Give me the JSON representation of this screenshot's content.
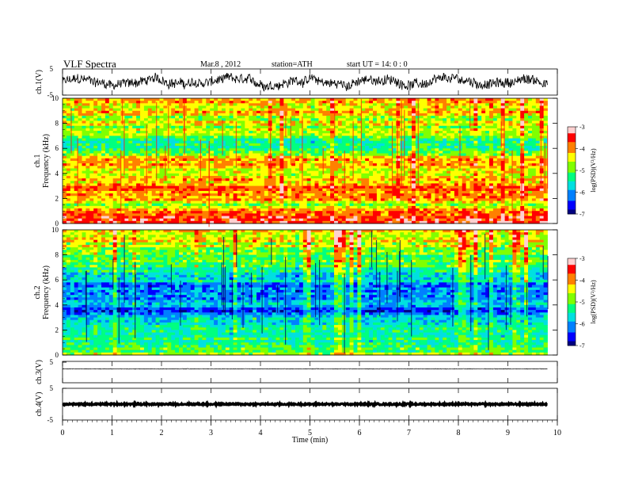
{
  "header": {
    "title": "VLF  Spectra",
    "date": "Mar.8  , 2012",
    "station": "station=ATH",
    "start": "start  UT  =   14: 0  : 0"
  },
  "colors": {
    "colormap": [
      "#000080",
      "#0000ff",
      "#0080ff",
      "#00e0e0",
      "#00ff80",
      "#80ff00",
      "#ffff00",
      "#ff8000",
      "#ff0000",
      "#ffd0d0"
    ]
  },
  "chart_data": [
    {
      "type": "line",
      "channel": "ch.1(V)",
      "ylabel": "ch.1(V)",
      "yticks": [
        "5",
        "-5"
      ],
      "ylim": [
        -5,
        5
      ],
      "xlim": [
        0,
        10
      ],
      "data_end": 9.8,
      "description_level": "noisy trace around 0 V, amplitude ~ ±4 V"
    },
    {
      "type": "heatmap",
      "channel": "ch.1",
      "ylabel": "ch.1\nFrequency  (kHz)",
      "ylabel_lines": [
        "ch.1",
        "Frequency  (kHz)"
      ],
      "yticks": [
        "0",
        "2",
        "4",
        "6",
        "8",
        "10"
      ],
      "ylim": [
        0,
        10
      ],
      "xlim": [
        0,
        10
      ],
      "data_end": 9.8,
      "colorbar": {
        "label": "log(PSD)(V²/Hz)",
        "ticks": [
          "-3",
          "-4",
          "-5",
          "-6",
          "-7"
        ],
        "range": [
          -7,
          -3
        ]
      },
      "band_levels_kHz": [
        {
          "f": 0.0,
          "level": -3.2
        },
        {
          "f": 0.3,
          "level": -3.8
        },
        {
          "f": 0.6,
          "level": -3.4
        },
        {
          "f": 1.0,
          "level": -4.2
        },
        {
          "f": 1.5,
          "level": -4.6
        },
        {
          "f": 2.0,
          "level": -3.9
        },
        {
          "f": 2.5,
          "level": -4.1
        },
        {
          "f": 3.0,
          "level": -3.8
        },
        {
          "f": 3.5,
          "level": -4.3
        },
        {
          "f": 4.0,
          "level": -4.6
        },
        {
          "f": 4.5,
          "level": -4.4
        },
        {
          "f": 5.0,
          "level": -3.9
        },
        {
          "f": 5.5,
          "level": -4.9
        },
        {
          "f": 6.0,
          "level": -5.2
        },
        {
          "f": 6.5,
          "level": -5.1
        },
        {
          "f": 7.0,
          "level": -4.9
        },
        {
          "f": 7.5,
          "level": -4.7
        },
        {
          "f": 8.0,
          "level": -4.5
        },
        {
          "f": 8.5,
          "level": -4.4
        },
        {
          "f": 9.0,
          "level": -4.3
        },
        {
          "f": 9.5,
          "level": -4.1
        },
        {
          "f": 10.0,
          "level": -4.0
        }
      ]
    },
    {
      "type": "heatmap",
      "channel": "ch.2",
      "ylabel": "ch.2\nFrequency  (kHz)",
      "ylabel_lines": [
        "ch.2",
        "Frequency  (kHz)"
      ],
      "yticks": [
        "0",
        "2",
        "4",
        "6",
        "8",
        "10"
      ],
      "ylim": [
        0,
        10
      ],
      "xlim": [
        0,
        10
      ],
      "data_end": 9.8,
      "colorbar": {
        "label": "log(PSD)(V²/Hz)",
        "ticks": [
          "-3",
          "-4",
          "-5",
          "-6",
          "-7"
        ],
        "range": [
          -7,
          -3
        ]
      },
      "band_levels_kHz": [
        {
          "f": 0.0,
          "level": -4.6
        },
        {
          "f": 0.5,
          "level": -5.0
        },
        {
          "f": 1.0,
          "level": -5.2
        },
        {
          "f": 1.5,
          "level": -5.4
        },
        {
          "f": 2.0,
          "level": -5.6
        },
        {
          "f": 2.5,
          "level": -5.7
        },
        {
          "f": 3.0,
          "level": -5.9
        },
        {
          "f": 3.5,
          "level": -6.3
        },
        {
          "f": 4.0,
          "level": -6.0
        },
        {
          "f": 4.5,
          "level": -6.2
        },
        {
          "f": 5.0,
          "level": -5.9
        },
        {
          "f": 5.5,
          "level": -6.2
        },
        {
          "f": 6.0,
          "level": -5.6
        },
        {
          "f": 6.5,
          "level": -5.5
        },
        {
          "f": 7.0,
          "level": -5.3
        },
        {
          "f": 7.5,
          "level": -5.0
        },
        {
          "f": 8.0,
          "level": -4.8
        },
        {
          "f": 8.5,
          "level": -4.6
        },
        {
          "f": 9.0,
          "level": -4.5
        },
        {
          "f": 9.5,
          "level": -4.4
        },
        {
          "f": 10.0,
          "level": -4.3
        }
      ]
    },
    {
      "type": "line",
      "channel": "ch.3(V)",
      "ylabel": "ch.3(V)",
      "yticks": [
        "5"
      ],
      "ylim": [
        -5,
        5
      ],
      "xlim": [
        0,
        10
      ],
      "data_end": 9.8
    },
    {
      "type": "line",
      "channel": "ch.4(V)",
      "ylabel": "ch.4(V)",
      "yticks": [
        "5",
        "-5"
      ],
      "ylim": [
        -5,
        5
      ],
      "xlim": [
        0,
        10
      ],
      "data_end": 9.8
    }
  ],
  "xaxis": {
    "label": "Time  (min)",
    "ticks": [
      "0",
      "1",
      "2",
      "3",
      "4",
      "5",
      "6",
      "7",
      "8",
      "9",
      "10"
    ],
    "xlim": [
      0,
      10
    ]
  }
}
